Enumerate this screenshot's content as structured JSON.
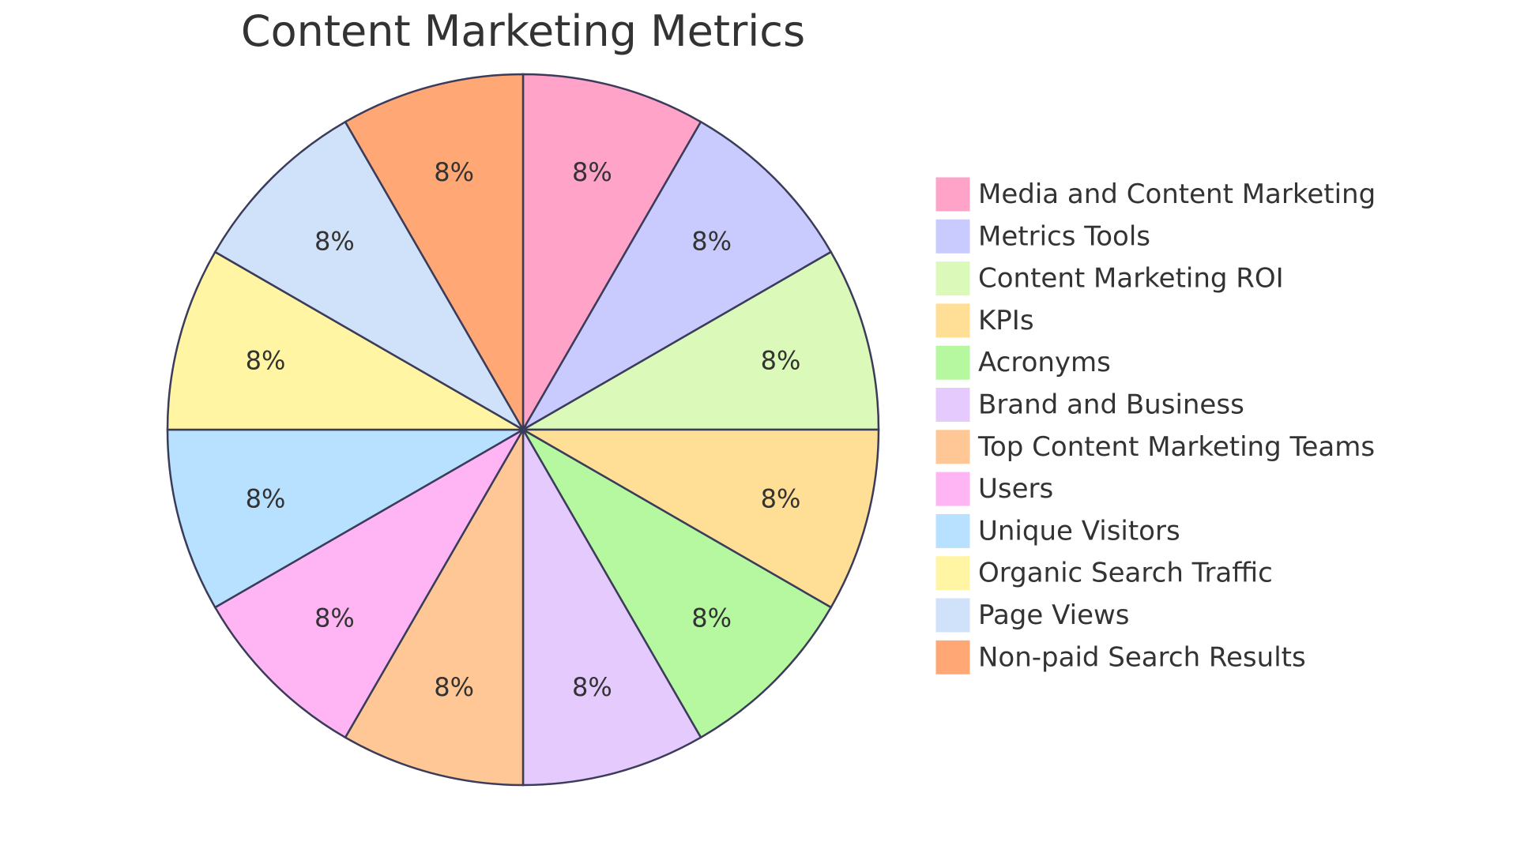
{
  "chart_data": {
    "type": "pie",
    "title": "Content Marketing Metrics",
    "legend_position": "right",
    "slices": [
      {
        "label": "Media and Content Marketing",
        "value": 8,
        "display": "8%",
        "color": "#FFA3C9"
      },
      {
        "label": "Metrics Tools",
        "value": 8,
        "display": "8%",
        "color": "#C9CBFE"
      },
      {
        "label": "Content Marketing ROI",
        "value": 8,
        "display": "8%",
        "color": "#DBF9B9"
      },
      {
        "label": "KPIs",
        "value": 8,
        "display": "8%",
        "color": "#FFDE95"
      },
      {
        "label": "Acronyms",
        "value": 8,
        "display": "8%",
        "color": "#B5F8A0"
      },
      {
        "label": "Brand and Business",
        "value": 8,
        "display": "8%",
        "color": "#E5CAFD"
      },
      {
        "label": "Top Content Marketing Teams",
        "value": 8,
        "display": "8%",
        "color": "#FFC795"
      },
      {
        "label": "Users",
        "value": 8,
        "display": "8%",
        "color": "#FFB5F4"
      },
      {
        "label": "Unique Visitors",
        "value": 8,
        "display": "8%",
        "color": "#B8E0FF"
      },
      {
        "label": "Organic Search Traffic",
        "value": 8,
        "display": "8%",
        "color": "#FFF5A3"
      },
      {
        "label": "Page Views",
        "value": 8,
        "display": "8%",
        "color": "#D0E2FA"
      },
      {
        "label": "Non-paid Search Results",
        "value": 8,
        "display": "8%",
        "color": "#FFA876"
      }
    ]
  }
}
